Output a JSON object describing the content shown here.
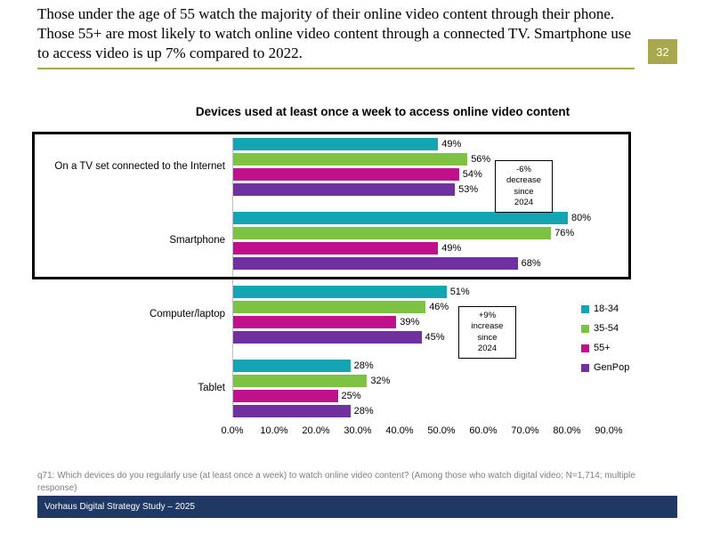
{
  "slide": {
    "header": "Those under the age of 55 watch the majority of their online video content through their phone. Those 55+ are most likely to watch online video content through a connected TV. Smartphone use to access video is up 7% compared to 2022.",
    "page_number": "32",
    "footnote": "q71: Which devices do you regularly use (at least once a week) to watch online video content? (Among those who watch digital video; N=1,714; multiple response)",
    "footer": "Vorhaus Digital Strategy Study – 2025"
  },
  "colors": {
    "accent_olive": "#A9A84E",
    "footer_navy": "#1F3864",
    "series_teal": "#14A5B3",
    "series_green": "#7DC243",
    "series_magenta": "#C0108C",
    "series_purple": "#7030A0"
  },
  "chart_data": {
    "type": "bar",
    "orientation": "horizontal",
    "title": "Devices used at least once a week to access online video content",
    "categories": [
      "On a TV set connected to the Internet",
      "Smartphone",
      "Computer/laptop",
      "Tablet"
    ],
    "series": [
      {
        "name": "18-34",
        "color": "#14A5B3",
        "values": [
          49,
          80,
          51,
          28
        ]
      },
      {
        "name": "35-54",
        "color": "#7DC243",
        "values": [
          56,
          76,
          46,
          32
        ]
      },
      {
        "name": "55+",
        "color": "#C0108C",
        "values": [
          54,
          49,
          39,
          25
        ]
      },
      {
        "name": "GenPop",
        "color": "#7030A0",
        "values": [
          53,
          68,
          45,
          28
        ]
      }
    ],
    "value_suffix": "%",
    "xlim": [
      0,
      90
    ],
    "x_ticks": [
      "0.0%",
      "10.0%",
      "20.0%",
      "30.0%",
      "40.0%",
      "50.0%",
      "60.0%",
      "70.0%",
      "80.0%",
      "90.0%"
    ],
    "grid": false,
    "legend_position": "right",
    "annotations": [
      {
        "lines": [
          "-6%",
          "decrease",
          "since",
          "2024"
        ]
      },
      {
        "lines": [
          "+9%",
          "increase",
          "since",
          "2024"
        ]
      }
    ]
  }
}
